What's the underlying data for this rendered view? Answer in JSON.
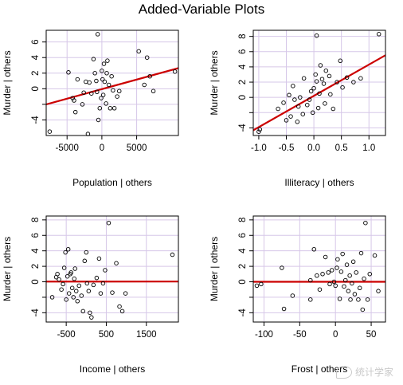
{
  "figure": {
    "title": "Added-Variable Plots"
  },
  "watermark": {
    "text": "统计学家"
  },
  "colors": {
    "points": "#000000",
    "regression_line": "#cc0000",
    "grid": "#d6c7e8",
    "axis": "#000000"
  },
  "chart_data": [
    {
      "type": "scatter",
      "xlabel": "Population | others",
      "ylabel": "Murder | others",
      "xticks": [
        -5000,
        0,
        5000
      ],
      "xtick_labels": [
        "-5000",
        "0",
        "5000"
      ],
      "yticks": [
        -4,
        -2,
        0,
        2,
        4,
        6
      ],
      "ytick_labels": [
        "-4",
        "",
        "0",
        "2",
        "4",
        "6"
      ],
      "xlim": [
        -8000,
        11000
      ],
      "ylim": [
        -6,
        7.5
      ],
      "grid": true,
      "fit_line": {
        "intercept": -0.05,
        "slope": 0.000245
      },
      "points": [
        [
          -7500,
          -5.5
        ],
        [
          -4800,
          2.1
        ],
        [
          -4200,
          -1.2
        ],
        [
          -4000,
          -1.5
        ],
        [
          -3800,
          -3.0
        ],
        [
          -3500,
          1.2
        ],
        [
          -2800,
          -2.0
        ],
        [
          -2600,
          -0.5
        ],
        [
          -2300,
          0.9
        ],
        [
          -2000,
          -5.8
        ],
        [
          -1800,
          0.8
        ],
        [
          -1500,
          -0.6
        ],
        [
          -1200,
          3.8
        ],
        [
          -1000,
          2.0
        ],
        [
          -800,
          1.0
        ],
        [
          -700,
          -0.4
        ],
        [
          -600,
          7.0
        ],
        [
          -500,
          -4.0
        ],
        [
          -300,
          -2.5
        ],
        [
          -100,
          -1.2
        ],
        [
          0,
          2.3
        ],
        [
          100,
          1.2
        ],
        [
          200,
          -0.8
        ],
        [
          300,
          3.2
        ],
        [
          400,
          0.9
        ],
        [
          600,
          -1.9
        ],
        [
          700,
          2.0
        ],
        [
          800,
          3.6
        ],
        [
          1000,
          0.5
        ],
        [
          1200,
          -2.5
        ],
        [
          1400,
          1.6
        ],
        [
          1600,
          -0.2
        ],
        [
          1800,
          -2.5
        ],
        [
          2200,
          -1.0
        ],
        [
          2500,
          -0.3
        ],
        [
          5300,
          4.8
        ],
        [
          6100,
          0.5
        ],
        [
          6500,
          4.0
        ],
        [
          6900,
          1.6
        ],
        [
          7400,
          -0.3
        ],
        [
          10500,
          2.2
        ]
      ]
    },
    {
      "type": "scatter",
      "xlabel": "Illiteracy | others",
      "ylabel": "Murder | others",
      "xticks": [
        -1.0,
        -0.5,
        0.0,
        0.5,
        1.0
      ],
      "xtick_labels": [
        "-1.0",
        "-0.5",
        "0.0",
        "0.5",
        "1.0"
      ],
      "yticks": [
        -4,
        -2,
        0,
        2,
        4,
        6,
        8
      ],
      "ytick_labels": [
        "-4",
        "",
        "0",
        "2",
        "4",
        "6",
        "8"
      ],
      "xlim": [
        -1.1,
        1.3
      ],
      "ylim": [
        -5,
        8.8
      ],
      "grid": true,
      "fit_line": {
        "intercept": 0.2,
        "slope": 4.1
      },
      "points": [
        [
          -1.0,
          -4.5
        ],
        [
          -0.98,
          -4.2
        ],
        [
          -0.65,
          -1.5
        ],
        [
          -0.55,
          -0.7
        ],
        [
          -0.5,
          -3.0
        ],
        [
          -0.45,
          0.3
        ],
        [
          -0.42,
          -2.5
        ],
        [
          -0.38,
          1.5
        ],
        [
          -0.35,
          -0.3
        ],
        [
          -0.3,
          -3.2
        ],
        [
          -0.28,
          -1.2
        ],
        [
          -0.25,
          0.0
        ],
        [
          -0.2,
          -2.2
        ],
        [
          -0.18,
          2.5
        ],
        [
          -0.12,
          -1.0
        ],
        [
          -0.08,
          -0.3
        ],
        [
          -0.05,
          0.8
        ],
        [
          -0.02,
          -2.0
        ],
        [
          0.0,
          1.2
        ],
        [
          0.03,
          3.0
        ],
        [
          0.05,
          2.1
        ],
        [
          0.08,
          -1.4
        ],
        [
          0.1,
          0.5
        ],
        [
          0.12,
          4.2
        ],
        [
          0.15,
          2.4
        ],
        [
          0.18,
          1.8
        ],
        [
          0.2,
          -0.8
        ],
        [
          0.22,
          3.5
        ],
        [
          0.28,
          2.8
        ],
        [
          0.3,
          0.4
        ],
        [
          0.35,
          -1.5
        ],
        [
          0.42,
          2.0
        ],
        [
          0.48,
          4.8
        ],
        [
          0.52,
          1.3
        ],
        [
          0.6,
          2.6
        ],
        [
          0.72,
          2.0
        ],
        [
          0.85,
          2.5
        ],
        [
          1.18,
          8.3
        ],
        [
          0.05,
          8.1
        ]
      ]
    },
    {
      "type": "scatter",
      "xlabel": "Income | others",
      "ylabel": "Murder | others",
      "xticks": [
        -500,
        500,
        1500
      ],
      "xtick_labels": [
        "-500",
        "500",
        "1500"
      ],
      "yticks": [
        -4,
        -2,
        0,
        2,
        4,
        6,
        8
      ],
      "ytick_labels": [
        "-4",
        "",
        "0",
        "2",
        "4",
        "6",
        "8"
      ],
      "xlim": [
        -1000,
        2300
      ],
      "ylim": [
        -5.2,
        8.5
      ],
      "grid": true,
      "fit_line": {
        "intercept": 0.03,
        "slope": 2.8e-06
      },
      "points": [
        [
          -850,
          -2.0
        ],
        [
          -750,
          0.6
        ],
        [
          -720,
          1.0
        ],
        [
          -680,
          0.3
        ],
        [
          -620,
          -1.0
        ],
        [
          -580,
          -0.3
        ],
        [
          -550,
          1.8
        ],
        [
          -520,
          3.8
        ],
        [
          -500,
          -2.3
        ],
        [
          -470,
          0.7
        ],
        [
          -450,
          4.2
        ],
        [
          -430,
          -1.5
        ],
        [
          -400,
          1.0
        ],
        [
          -380,
          1.2
        ],
        [
          -350,
          -0.8
        ],
        [
          -320,
          -2.0
        ],
        [
          -300,
          0.4
        ],
        [
          -280,
          1.7
        ],
        [
          -250,
          -1.2
        ],
        [
          -220,
          -2.5
        ],
        [
          -180,
          -0.5
        ],
        [
          -120,
          -1.8
        ],
        [
          -80,
          -3.8
        ],
        [
          -40,
          2.7
        ],
        [
          0,
          3.8
        ],
        [
          20,
          -0.2
        ],
        [
          60,
          -1.2
        ],
        [
          90,
          -4.0
        ],
        [
          130,
          -4.6
        ],
        [
          180,
          -0.4
        ],
        [
          260,
          0.5
        ],
        [
          320,
          3.0
        ],
        [
          360,
          -1.5
        ],
        [
          420,
          -0.2
        ],
        [
          470,
          1.5
        ],
        [
          560,
          7.6
        ],
        [
          650,
          -1.4
        ],
        [
          750,
          2.4
        ],
        [
          830,
          -3.2
        ],
        [
          900,
          -3.8
        ],
        [
          980,
          -1.5
        ],
        [
          2150,
          3.5
        ]
      ]
    },
    {
      "type": "scatter",
      "xlabel": "Frost | others",
      "ylabel": "Murder | others",
      "xticks": [
        -100,
        -50,
        0,
        50
      ],
      "xtick_labels": [
        "-100",
        "-50",
        "0",
        "50"
      ],
      "yticks": [
        -4,
        -2,
        0,
        2,
        4,
        6,
        8
      ],
      "ytick_labels": [
        "-4",
        "",
        "0",
        "2",
        "4",
        "6",
        "8"
      ],
      "xlim": [
        -115,
        70
      ],
      "ylim": [
        -5.2,
        8.5
      ],
      "grid": true,
      "fit_line": {
        "intercept": 0.0,
        "slope": 0.0
      },
      "points": [
        [
          -110,
          -0.5
        ],
        [
          -104,
          -0.3
        ],
        [
          -75,
          1.8
        ],
        [
          -72,
          -3.5
        ],
        [
          -60,
          -1.8
        ],
        [
          -35,
          0.2
        ],
        [
          -30,
          4.2
        ],
        [
          -26,
          0.8
        ],
        [
          -22,
          -1.0
        ],
        [
          -18,
          1.0
        ],
        [
          -14,
          3.2
        ],
        [
          -10,
          1.2
        ],
        [
          -8,
          -0.3
        ],
        [
          -5,
          1.5
        ],
        [
          -2,
          0.0
        ],
        [
          0,
          -0.5
        ],
        [
          2,
          1.8
        ],
        [
          3,
          2.9
        ],
        [
          6,
          -2.2
        ],
        [
          8,
          1.3
        ],
        [
          10,
          3.6
        ],
        [
          12,
          -0.6
        ],
        [
          14,
          0.2
        ],
        [
          16,
          2.2
        ],
        [
          18,
          -1.2
        ],
        [
          20,
          0.8
        ],
        [
          21,
          -2.3
        ],
        [
          23,
          -0.2
        ],
        [
          25,
          2.6
        ],
        [
          27,
          -1.6
        ],
        [
          29,
          1.2
        ],
        [
          32,
          -2.3
        ],
        [
          34,
          -0.8
        ],
        [
          36,
          3.7
        ],
        [
          38,
          -3.6
        ],
        [
          40,
          0.4
        ],
        [
          42,
          7.6
        ],
        [
          45,
          -2.3
        ],
        [
          48,
          1.0
        ],
        [
          55,
          3.4
        ],
        [
          60,
          -1.2
        ],
        [
          -35,
          -2.3
        ]
      ]
    }
  ]
}
